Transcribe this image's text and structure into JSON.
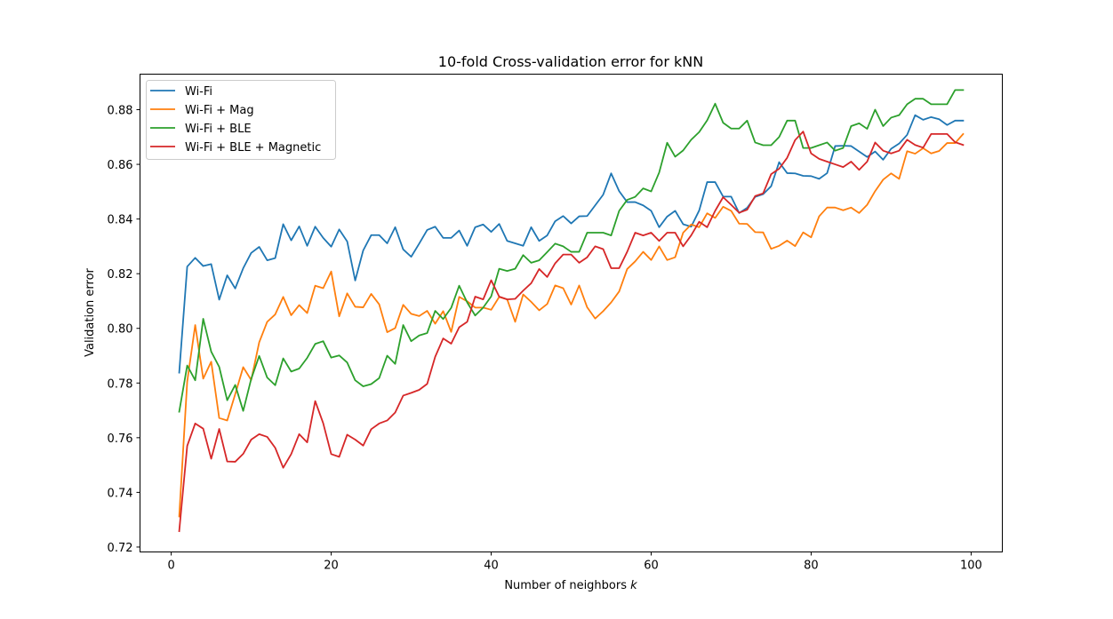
{
  "chart_data": {
    "type": "line",
    "title": "10-fold Cross-validation error for kNN",
    "xlabel": "Number of neighbors",
    "xlabel_italic": "k",
    "ylabel": "Validation error",
    "xlim": [
      -3.9,
      103.9
    ],
    "ylim": [
      0.7182,
      0.893
    ],
    "xticks": [
      0,
      20,
      40,
      60,
      80,
      100
    ],
    "yticks": [
      0.72,
      0.74,
      0.76,
      0.78,
      0.8,
      0.82,
      0.84,
      0.86,
      0.88
    ],
    "ytick_labels": [
      "0.72",
      "0.74",
      "0.76",
      "0.78",
      "0.80",
      "0.82",
      "0.84",
      "0.86",
      "0.88"
    ],
    "xtick_labels": [
      "0",
      "20",
      "40",
      "60",
      "80",
      "100"
    ],
    "grid": false,
    "legend_position": "upper-left",
    "x": [
      1,
      2,
      3,
      4,
      5,
      6,
      7,
      8,
      9,
      10,
      11,
      12,
      13,
      14,
      15,
      16,
      17,
      18,
      19,
      20,
      21,
      22,
      23,
      24,
      25,
      26,
      27,
      28,
      29,
      30,
      31,
      32,
      33,
      34,
      35,
      36,
      37,
      38,
      39,
      40,
      41,
      42,
      43,
      44,
      45,
      46,
      47,
      48,
      49,
      50,
      51,
      52,
      53,
      54,
      55,
      56,
      57,
      58,
      59,
      60,
      61,
      62,
      63,
      64,
      65,
      66,
      67,
      68,
      69,
      70,
      71,
      72,
      73,
      74,
      75,
      76,
      77,
      78,
      79,
      80,
      81,
      82,
      83,
      84,
      85,
      86,
      87,
      88,
      89,
      90,
      91,
      92,
      93,
      94,
      95,
      96,
      97,
      98,
      99
    ],
    "series": [
      {
        "name": "Wi-Fi",
        "color": "#1f77b4",
        "values": [
          0.7838,
          0.8226,
          0.8258,
          0.8228,
          0.8235,
          0.8105,
          0.8194,
          0.8146,
          0.822,
          0.8276,
          0.8298,
          0.8249,
          0.8257,
          0.8381,
          0.8322,
          0.8373,
          0.8302,
          0.8372,
          0.8331,
          0.8299,
          0.8362,
          0.8318,
          0.8175,
          0.8285,
          0.8341,
          0.8341,
          0.8311,
          0.837,
          0.8289,
          0.8262,
          0.831,
          0.836,
          0.8372,
          0.8331,
          0.8331,
          0.8358,
          0.8302,
          0.837,
          0.838,
          0.8353,
          0.8382,
          0.832,
          0.8311,
          0.8302,
          0.837,
          0.832,
          0.834,
          0.8392,
          0.8411,
          0.8384,
          0.841,
          0.8411,
          0.845,
          0.8489,
          0.8567,
          0.8502,
          0.8462,
          0.8462,
          0.845,
          0.843,
          0.837,
          0.8409,
          0.843,
          0.8381,
          0.8372,
          0.8431,
          0.8535,
          0.8535,
          0.8482,
          0.8482,
          0.8422,
          0.8441,
          0.8481,
          0.8491,
          0.852,
          0.8608,
          0.8568,
          0.8567,
          0.8558,
          0.8557,
          0.8547,
          0.8568,
          0.8667,
          0.8668,
          0.8667,
          0.8647,
          0.8627,
          0.8647,
          0.8617,
          0.8657,
          0.8676,
          0.8708,
          0.878,
          0.8763,
          0.8773,
          0.8765,
          0.8744,
          0.876,
          0.876
        ]
      },
      {
        "name": "Wi-Fi + Mag",
        "color": "#ff7f0e",
        "values": [
          0.7312,
          0.7805,
          0.8012,
          0.7816,
          0.7878,
          0.7672,
          0.7663,
          0.7759,
          0.7858,
          0.7811,
          0.7949,
          0.8024,
          0.8051,
          0.8115,
          0.8048,
          0.8085,
          0.8056,
          0.8156,
          0.8147,
          0.8208,
          0.8044,
          0.8128,
          0.8079,
          0.8077,
          0.8126,
          0.8088,
          0.7986,
          0.8001,
          0.8086,
          0.8053,
          0.8045,
          0.8064,
          0.8017,
          0.8063,
          0.7987,
          0.8115,
          0.8099,
          0.8076,
          0.8076,
          0.8068,
          0.8115,
          0.8106,
          0.8024,
          0.8124,
          0.8097,
          0.8066,
          0.8089,
          0.8157,
          0.8147,
          0.8087,
          0.8157,
          0.8077,
          0.8036,
          0.8063,
          0.8095,
          0.8135,
          0.8217,
          0.8245,
          0.828,
          0.825,
          0.83,
          0.825,
          0.826,
          0.835,
          0.838,
          0.837,
          0.8421,
          0.8404,
          0.8445,
          0.843,
          0.8383,
          0.8382,
          0.8352,
          0.8351,
          0.8291,
          0.8302,
          0.8321,
          0.8301,
          0.8351,
          0.8333,
          0.841,
          0.8442,
          0.8442,
          0.8432,
          0.8442,
          0.8422,
          0.8452,
          0.8502,
          0.8544,
          0.8567,
          0.8547,
          0.8648,
          0.8639,
          0.8659,
          0.864,
          0.8649,
          0.8678,
          0.8678,
          0.8711
        ]
      },
      {
        "name": "Wi-Fi + BLE",
        "color": "#2ca02c",
        "values": [
          0.7695,
          0.7864,
          0.781,
          0.8035,
          0.7915,
          0.7859,
          0.7737,
          0.7793,
          0.7698,
          0.7815,
          0.7899,
          0.782,
          0.7792,
          0.789,
          0.7842,
          0.7853,
          0.7892,
          0.7943,
          0.7953,
          0.7893,
          0.7901,
          0.7875,
          0.781,
          0.7788,
          0.7796,
          0.7818,
          0.79,
          0.787,
          0.8012,
          0.7953,
          0.7974,
          0.7983,
          0.8064,
          0.8034,
          0.8075,
          0.8156,
          0.8095,
          0.8047,
          0.8076,
          0.8117,
          0.8218,
          0.821,
          0.8218,
          0.8268,
          0.824,
          0.8249,
          0.8279,
          0.831,
          0.83,
          0.828,
          0.828,
          0.835,
          0.835,
          0.835,
          0.834,
          0.843,
          0.847,
          0.8481,
          0.8512,
          0.8501,
          0.857,
          0.8679,
          0.8628,
          0.8651,
          0.869,
          0.8718,
          0.8761,
          0.8822,
          0.8752,
          0.8731,
          0.8731,
          0.876,
          0.868,
          0.867,
          0.867,
          0.87,
          0.876,
          0.876,
          0.866,
          0.866,
          0.867,
          0.868,
          0.865,
          0.866,
          0.874,
          0.875,
          0.873,
          0.88,
          0.874,
          0.8771,
          0.878,
          0.882,
          0.884,
          0.884,
          0.882,
          0.882,
          0.882,
          0.8872,
          0.8872
        ]
      },
      {
        "name": "Wi-Fi + BLE + Magnetic",
        "color": "#d62728",
        "values": [
          0.7258,
          0.757,
          0.7652,
          0.7633,
          0.7523,
          0.7632,
          0.7513,
          0.7512,
          0.7541,
          0.7593,
          0.7613,
          0.7603,
          0.7563,
          0.749,
          0.754,
          0.7613,
          0.7583,
          0.7734,
          0.7653,
          0.754,
          0.753,
          0.7611,
          0.7593,
          0.7571,
          0.7631,
          0.7652,
          0.7663,
          0.7692,
          0.7754,
          0.7764,
          0.7775,
          0.7797,
          0.7896,
          0.7963,
          0.7944,
          0.8004,
          0.8024,
          0.8116,
          0.8106,
          0.8176,
          0.8116,
          0.8106,
          0.8108,
          0.8138,
          0.8165,
          0.8217,
          0.8188,
          0.8238,
          0.827,
          0.827,
          0.824,
          0.826,
          0.83,
          0.829,
          0.822,
          0.822,
          0.828,
          0.835,
          0.834,
          0.835,
          0.832,
          0.835,
          0.835,
          0.83,
          0.834,
          0.839,
          0.837,
          0.843,
          0.848,
          0.8452,
          0.8423,
          0.8434,
          0.8484,
          0.8494,
          0.8564,
          0.8584,
          0.8624,
          0.8689,
          0.872,
          0.864,
          0.862,
          0.861,
          0.86,
          0.859,
          0.861,
          0.858,
          0.861,
          0.868,
          0.865,
          0.864,
          0.865,
          0.869,
          0.8671,
          0.8661,
          0.8711,
          0.8711,
          0.8711,
          0.8681,
          0.8671
        ]
      }
    ]
  }
}
